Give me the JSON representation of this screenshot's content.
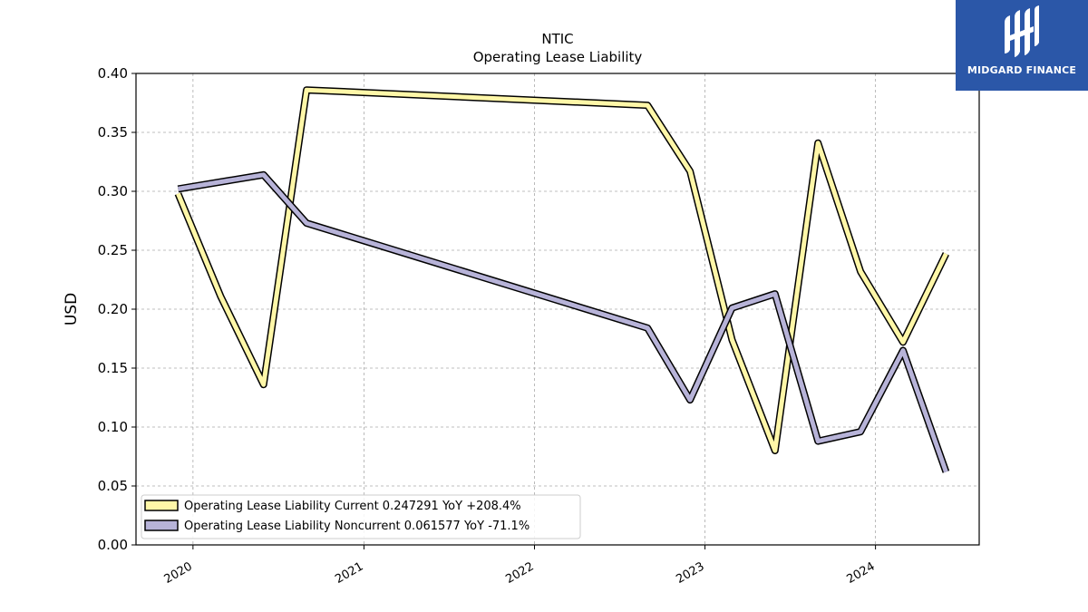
{
  "brand": {
    "name": "MIDGARD FINANCE",
    "color": "#2b57a8"
  },
  "chart_data": {
    "type": "line",
    "title": "NTIC",
    "subtitle": "Operating Lease Liability",
    "xlabel": "",
    "ylabel": "USD",
    "x_ticks": [
      "2020",
      "2021",
      "2022",
      "2023",
      "2024"
    ],
    "y_ticks": [
      "0.00",
      "0.05",
      "0.10",
      "0.15",
      "0.20",
      "0.25",
      "0.30",
      "0.35",
      "0.40"
    ],
    "xlim": [
      "2019-09-01",
      "2024-08-10"
    ],
    "ylim": [
      0,
      0.4
    ],
    "grid": true,
    "legend_position": "lower-left",
    "series": [
      {
        "name": "Operating Lease Liability Current",
        "legend": "Operating Lease Liability Current  0.247291 YoY +208.4%",
        "color": "#fff7a8",
        "points": [
          [
            "2019-11-30",
            0.298
          ],
          [
            "2020-02-29",
            0.211
          ],
          [
            "2020-05-31",
            0.136
          ],
          [
            "2020-08-31",
            0.386
          ],
          [
            "2022-08-31",
            0.373
          ],
          [
            "2022-11-30",
            0.317
          ],
          [
            "2023-02-28",
            0.174
          ],
          [
            "2023-05-31",
            0.08
          ],
          [
            "2023-08-31",
            0.341
          ],
          [
            "2023-11-30",
            0.232
          ],
          [
            "2024-02-29",
            0.172
          ],
          [
            "2024-05-31",
            0.247
          ]
        ]
      },
      {
        "name": "Operating Lease Liability Noncurrent",
        "legend": "Operating Lease Liability Noncurrent  0.061577 YoY -71.1%",
        "color": "#b7b3d8",
        "points": [
          [
            "2019-11-30",
            0.302
          ],
          [
            "2020-05-31",
            0.314
          ],
          [
            "2020-08-31",
            0.273
          ],
          [
            "2022-08-31",
            0.184
          ],
          [
            "2022-11-30",
            0.123
          ],
          [
            "2023-02-28",
            0.201
          ],
          [
            "2023-05-31",
            0.213
          ],
          [
            "2023-08-31",
            0.088
          ],
          [
            "2023-11-30",
            0.096
          ],
          [
            "2024-02-29",
            0.165
          ],
          [
            "2024-05-31",
            0.062
          ]
        ]
      }
    ]
  }
}
